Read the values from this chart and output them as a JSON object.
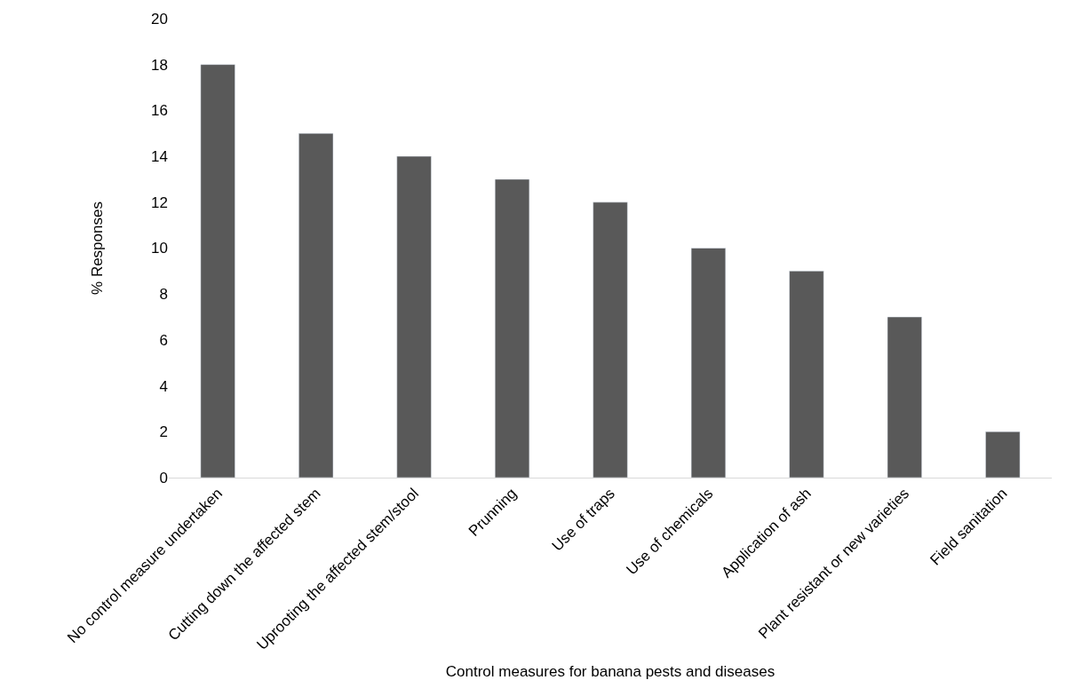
{
  "chart_data": {
    "type": "bar",
    "xlabel": "Control measures for banana pests and diseases",
    "ylabel": "% Responses",
    "categories": [
      "No control measure undertaken",
      "Cutting down the affected stem",
      "Uprooting the affected stem/stool",
      "Prunning",
      "Use of traps",
      "Use of chemicals",
      "Application of ash",
      "Plant resistant or new varieties",
      "Field sanitation"
    ],
    "values": [
      18,
      15,
      14,
      13,
      12,
      10,
      9,
      7,
      2
    ],
    "color": "#595959",
    "ylim": [
      0,
      20
    ],
    "yticks": [
      0,
      2,
      4,
      6,
      8,
      10,
      12,
      14,
      16,
      18,
      20
    ]
  }
}
